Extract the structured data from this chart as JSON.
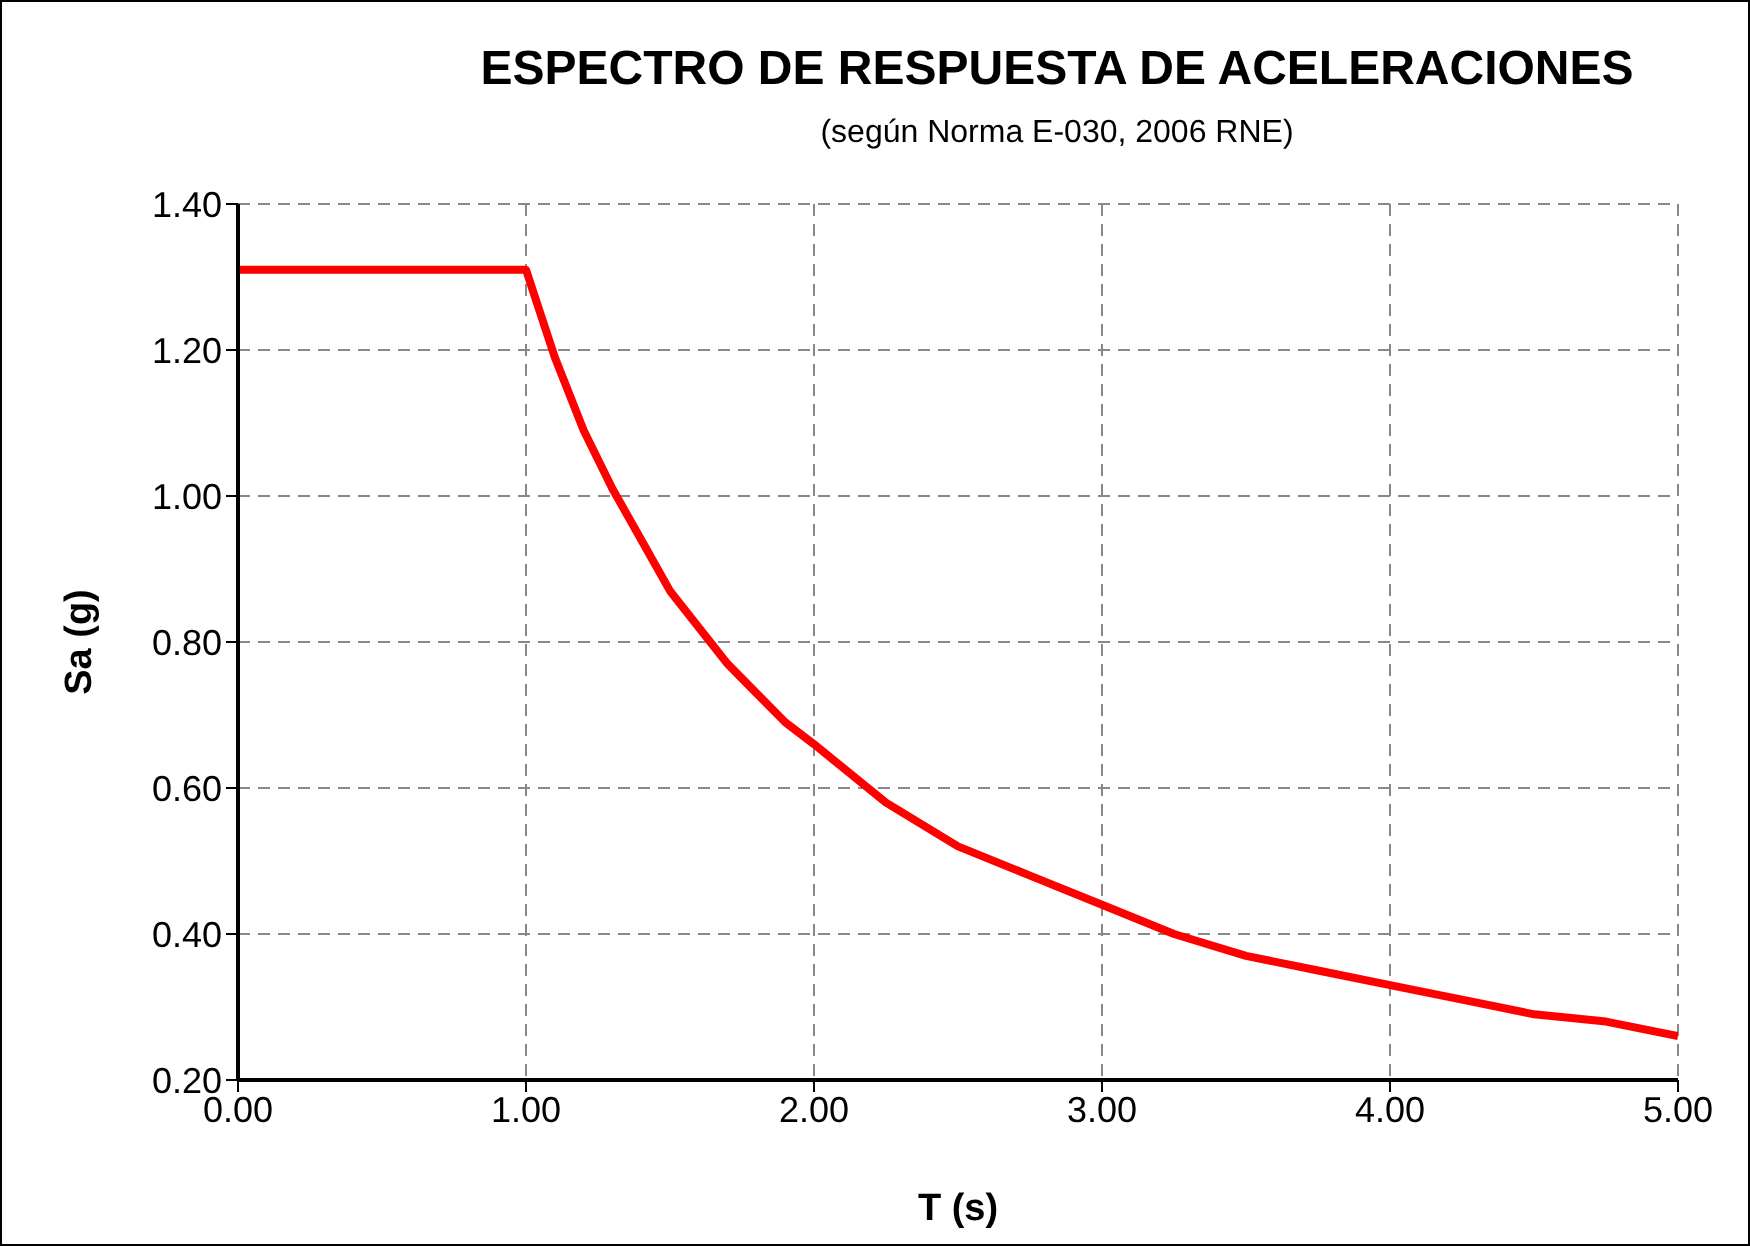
{
  "chart_data": {
    "type": "line",
    "title": "ESPECTRO DE RESPUESTA DE ACELERACIONES",
    "subtitle": "(según Norma E-030, 2006 RNE)",
    "xlabel": "T (s)",
    "ylabel": "Sa (g)",
    "x": [
      0,
      0.5,
      1,
      1.1,
      1.2,
      1.3,
      1.4,
      1.5,
      1.6,
      1.7,
      1.8,
      1.9,
      2,
      2.25,
      2.5,
      2.75,
      3,
      3.25,
      3.5,
      3.75,
      4,
      4.25,
      4.5,
      4.75,
      5
    ],
    "series": [
      {
        "color": "#ff0000",
        "values": [
          1.31,
          1.31,
          1.31,
          1.19,
          1.09,
          1.01,
          0.94,
          0.87,
          0.82,
          0.77,
          0.73,
          0.69,
          0.66,
          0.58,
          0.52,
          0.48,
          0.44,
          0.4,
          0.37,
          0.35,
          0.33,
          0.31,
          0.29,
          0.28,
          0.26
        ]
      }
    ],
    "xlim": [
      0,
      5
    ],
    "xticks": [
      {
        "value": 0,
        "label": "0.00"
      },
      {
        "value": 1,
        "label": "1.00"
      },
      {
        "value": 2,
        "label": "2.00"
      },
      {
        "value": 3,
        "label": "3.00"
      },
      {
        "value": 4,
        "label": "4.00"
      },
      {
        "value": 5,
        "label": "5.00"
      }
    ],
    "ylim": [
      0.2,
      1.4
    ],
    "yticks": [
      {
        "value": 0.2,
        "label": "0.20"
      },
      {
        "value": 0.4,
        "label": "0.40"
      },
      {
        "value": 0.6,
        "label": "0.60"
      },
      {
        "value": 0.8,
        "label": "0.80"
      },
      {
        "value": 1,
        "label": "1.00"
      },
      {
        "value": 1.2,
        "label": "1.20"
      },
      {
        "value": 1.4,
        "label": "1.40"
      }
    ],
    "grid": true,
    "marker": "none",
    "line_style": "solid",
    "legend": false
  }
}
